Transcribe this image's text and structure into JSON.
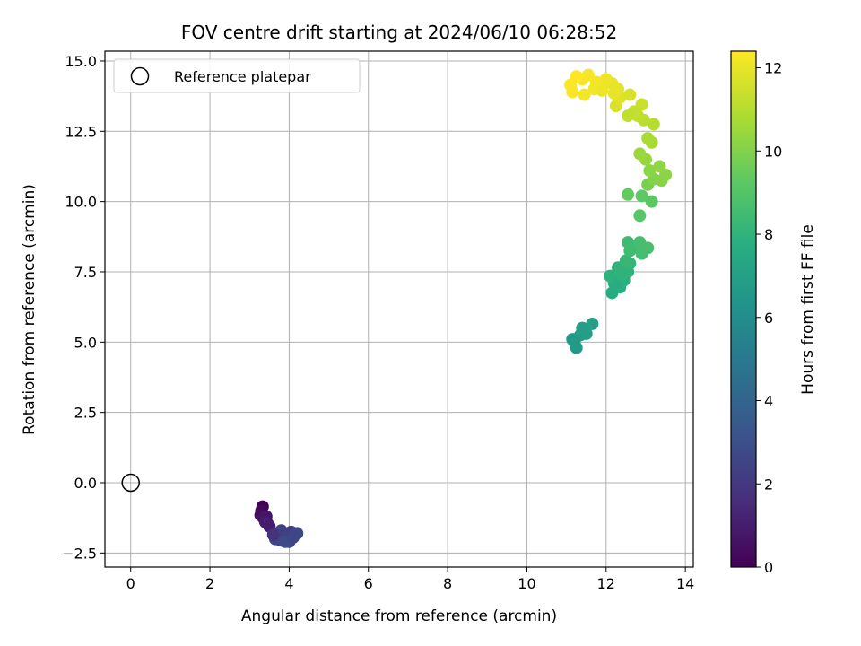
{
  "chart_data": {
    "type": "scatter",
    "title": "FOV centre drift starting at 2024/06/10 06:28:52",
    "xlabel": "Angular distance from reference (arcmin)",
    "ylabel": "Rotation from reference (arcmin)",
    "xlim": [
      -0.65,
      14.2
    ],
    "ylim": [
      -3.0,
      15.35
    ],
    "xticks": [
      0,
      2,
      4,
      6,
      8,
      10,
      12,
      14
    ],
    "xtick_labels": [
      "0",
      "2",
      "4",
      "6",
      "8",
      "10",
      "12",
      "14"
    ],
    "yticks": [
      -2.5,
      0,
      2.5,
      5,
      7.5,
      10,
      12.5,
      15
    ],
    "ytick_labels": [
      "−2.5",
      "0.0",
      "2.5",
      "5.0",
      "7.5",
      "10.0",
      "12.5",
      "15.0"
    ],
    "grid": true,
    "legend": {
      "location": "upper-left",
      "entries": [
        "Reference platepar"
      ]
    },
    "reference": {
      "x": 0,
      "y": 0,
      "marker": "open-circle"
    },
    "colorbar": {
      "label": "Hours from first FF file",
      "colormap": "viridis",
      "range": [
        0,
        12.4
      ],
      "ticks": [
        0,
        2,
        4,
        6,
        8,
        10,
        12
      ],
      "tick_labels": [
        "0",
        "2",
        "4",
        "6",
        "8",
        "10",
        "12"
      ]
    },
    "points": [
      [
        3.33,
        -0.85,
        0.0
      ],
      [
        3.3,
        -1.0,
        0.2
      ],
      [
        3.28,
        -1.15,
        0.4
      ],
      [
        3.35,
        -1.25,
        0.6
      ],
      [
        3.42,
        -1.2,
        0.7
      ],
      [
        3.4,
        -1.4,
        0.9
      ],
      [
        3.5,
        -1.55,
        1.1
      ],
      [
        3.45,
        -1.45,
        1.0
      ],
      [
        3.7,
        -1.9,
        1.7
      ],
      [
        3.85,
        -1.8,
        1.9
      ],
      [
        3.95,
        -1.95,
        2.1
      ],
      [
        3.78,
        -2.05,
        2.2
      ],
      [
        4.05,
        -1.75,
        2.3
      ],
      [
        4.0,
        -2.1,
        2.5
      ],
      [
        4.2,
        -1.8,
        2.7
      ],
      [
        3.8,
        -1.7,
        2.4
      ],
      [
        3.65,
        -2.0,
        2.6
      ],
      [
        3.9,
        -2.1,
        2.8
      ],
      [
        4.1,
        -1.95,
        2.6
      ],
      [
        3.6,
        -1.85,
        1.8
      ],
      [
        11.25,
        4.8,
        6.7
      ],
      [
        11.15,
        5.1,
        6.6
      ],
      [
        11.35,
        5.25,
        6.8
      ],
      [
        11.5,
        5.3,
        6.9
      ],
      [
        11.4,
        5.5,
        6.9
      ],
      [
        11.65,
        5.65,
        7.0
      ],
      [
        11.2,
        5.0,
        6.7
      ],
      [
        12.15,
        6.75,
        7.6
      ],
      [
        12.35,
        6.95,
        7.7
      ],
      [
        12.2,
        7.1,
        7.8
      ],
      [
        12.45,
        7.2,
        7.8
      ],
      [
        12.1,
        7.35,
        7.9
      ],
      [
        12.55,
        7.5,
        8.0
      ],
      [
        12.3,
        7.65,
        8.0
      ],
      [
        12.6,
        7.8,
        8.1
      ],
      [
        12.5,
        7.9,
        8.2
      ],
      [
        12.4,
        7.4,
        8.0
      ],
      [
        12.25,
        7.0,
        7.7
      ],
      [
        12.55,
        8.55,
        8.4
      ],
      [
        12.7,
        8.4,
        8.5
      ],
      [
        12.85,
        8.55,
        8.6
      ],
      [
        13.05,
        8.35,
        8.7
      ],
      [
        12.9,
        8.15,
        8.6
      ],
      [
        12.6,
        8.25,
        8.5
      ],
      [
        12.85,
        9.5,
        9.1
      ],
      [
        13.15,
        10.0,
        9.2
      ],
      [
        12.9,
        10.2,
        9.3
      ],
      [
        12.55,
        10.25,
        9.4
      ],
      [
        13.05,
        10.6,
        9.8
      ],
      [
        13.2,
        10.8,
        10.0
      ],
      [
        13.4,
        10.75,
        10.1
      ],
      [
        13.5,
        10.95,
        10.2
      ],
      [
        13.35,
        11.25,
        10.3
      ],
      [
        13.1,
        11.1,
        10.2
      ],
      [
        13.0,
        11.5,
        10.4
      ],
      [
        12.85,
        11.7,
        10.5
      ],
      [
        13.15,
        12.1,
        10.7
      ],
      [
        13.05,
        12.25,
        10.8
      ],
      [
        13.2,
        12.75,
        11.0
      ],
      [
        12.95,
        12.9,
        11.1
      ],
      [
        12.8,
        13.05,
        11.2
      ],
      [
        12.9,
        13.45,
        11.4
      ],
      [
        12.7,
        13.2,
        11.3
      ],
      [
        12.55,
        13.05,
        11.2
      ],
      [
        12.25,
        13.4,
        11.7
      ],
      [
        12.35,
        13.7,
        11.8
      ],
      [
        12.3,
        14.0,
        11.9
      ],
      [
        12.6,
        13.8,
        11.7
      ],
      [
        12.15,
        14.2,
        12.0
      ],
      [
        12.0,
        14.35,
        12.1
      ],
      [
        11.75,
        14.25,
        12.2
      ],
      [
        11.55,
        14.5,
        12.3
      ],
      [
        11.4,
        14.35,
        12.3
      ],
      [
        11.25,
        14.45,
        12.4
      ],
      [
        11.1,
        14.15,
        12.4
      ],
      [
        11.15,
        13.9,
        12.3
      ],
      [
        11.45,
        13.8,
        12.2
      ],
      [
        11.7,
        14.0,
        12.2
      ],
      [
        11.9,
        13.95,
        12.1
      ],
      [
        12.2,
        13.85,
        12.0
      ]
    ]
  }
}
